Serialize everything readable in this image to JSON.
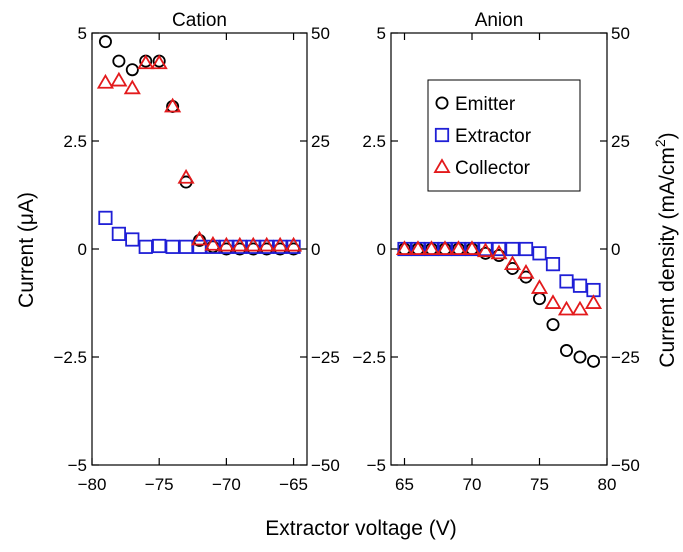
{
  "figure": {
    "xlabel": "Extractor voltage (V)",
    "ylabel_left": "Current (μA)",
    "ylabel_right_main": "Current density (mA/cm",
    "ylabel_right_sup": "2",
    "ylabel_right_close": ")"
  },
  "colors": {
    "emitter": "#000000",
    "extractor": "#1f1fd6",
    "collector": "#e31a1c",
    "axis": "#000000"
  },
  "chart_data": [
    {
      "type": "scatter",
      "title": "Cation",
      "xlim": [
        -80,
        -64
      ],
      "xticks": [
        -80,
        -75,
        -70,
        -65
      ],
      "xtick_labels": [
        "−80",
        "−75",
        "−70",
        "−65"
      ],
      "ylim": [
        -5,
        5
      ],
      "yticks": [
        -5,
        -2.5,
        0,
        2.5,
        5
      ],
      "ytick_labels": [
        "−5",
        "−2.5",
        "0",
        "2.5",
        "5"
      ],
      "y2lim": [
        -50,
        50
      ],
      "y2ticks": [
        -50,
        -25,
        0,
        25,
        50
      ],
      "y2tick_labels": [
        "−50",
        "−25",
        "0",
        "25",
        "50"
      ],
      "series": [
        {
          "name": "Emitter",
          "marker": "circle",
          "x": [
            -79,
            -78,
            -77,
            -76,
            -75,
            -74,
            -73,
            -72,
            -71,
            -70,
            -69,
            -68,
            -67,
            -66,
            -65
          ],
          "y": [
            4.8,
            4.35,
            4.15,
            4.35,
            4.35,
            3.3,
            1.55,
            0.2,
            0.05,
            0.0,
            0.0,
            0.0,
            0.0,
            0.0,
            0.0
          ]
        },
        {
          "name": "Extractor",
          "marker": "square",
          "x": [
            -79,
            -78,
            -77,
            -76,
            -75,
            -74,
            -73,
            -72,
            -71,
            -70,
            -69,
            -68,
            -67,
            -66,
            -65
          ],
          "y": [
            0.72,
            0.35,
            0.22,
            0.05,
            0.07,
            0.05,
            0.05,
            0.05,
            0.05,
            0.05,
            0.05,
            0.05,
            0.05,
            0.05,
            0.05
          ]
        },
        {
          "name": "Collector",
          "marker": "triangle",
          "x": [
            -79,
            -78,
            -77,
            -76,
            -75,
            -74,
            -73,
            -72,
            -71,
            -70,
            -69,
            -68,
            -67,
            -66,
            -65
          ],
          "y": [
            3.85,
            3.9,
            3.72,
            4.3,
            4.3,
            3.3,
            1.65,
            0.22,
            0.1,
            0.08,
            0.08,
            0.08,
            0.08,
            0.08,
            0.08
          ]
        }
      ]
    },
    {
      "type": "scatter",
      "title": "Anion",
      "xlim": [
        64,
        80
      ],
      "xticks": [
        65,
        70,
        75,
        80
      ],
      "xtick_labels": [
        "65",
        "70",
        "75",
        "80"
      ],
      "ylim": [
        -5,
        5
      ],
      "yticks": [
        -5,
        -2.5,
        0,
        2.5,
        5
      ],
      "ytick_labels": [
        "−5",
        "−2.5",
        "0",
        "2.5",
        "5"
      ],
      "y2lim": [
        -50,
        50
      ],
      "y2ticks": [
        -50,
        -25,
        0,
        25,
        50
      ],
      "y2tick_labels": [
        "−50",
        "−25",
        "0",
        "25",
        "50"
      ],
      "legend": "top-right",
      "series": [
        {
          "name": "Emitter",
          "marker": "circle",
          "x": [
            65,
            66,
            67,
            68,
            69,
            70,
            71,
            72,
            73,
            74,
            75,
            76,
            77,
            78,
            79
          ],
          "y": [
            0.0,
            0.0,
            0.0,
            0.0,
            0.0,
            0.0,
            -0.1,
            -0.15,
            -0.45,
            -0.65,
            -1.15,
            -1.75,
            -2.35,
            -2.5,
            -2.6
          ]
        },
        {
          "name": "Extractor",
          "marker": "square",
          "x": [
            65,
            66,
            67,
            68,
            69,
            70,
            71,
            72,
            73,
            74,
            75,
            76,
            77,
            78,
            79
          ],
          "y": [
            0.0,
            0.0,
            0.0,
            0.0,
            0.0,
            0.0,
            0.0,
            0.0,
            0.0,
            0.0,
            -0.1,
            -0.35,
            -0.75,
            -0.85,
            -0.95
          ]
        },
        {
          "name": "Collector",
          "marker": "triangle",
          "x": [
            65,
            66,
            67,
            68,
            69,
            70,
            71,
            72,
            73,
            74,
            75,
            76,
            77,
            78,
            79
          ],
          "y": [
            0.0,
            0.0,
            0.0,
            0.0,
            0.0,
            0.0,
            -0.05,
            -0.1,
            -0.35,
            -0.55,
            -0.9,
            -1.25,
            -1.4,
            -1.4,
            -1.25
          ]
        }
      ]
    }
  ]
}
